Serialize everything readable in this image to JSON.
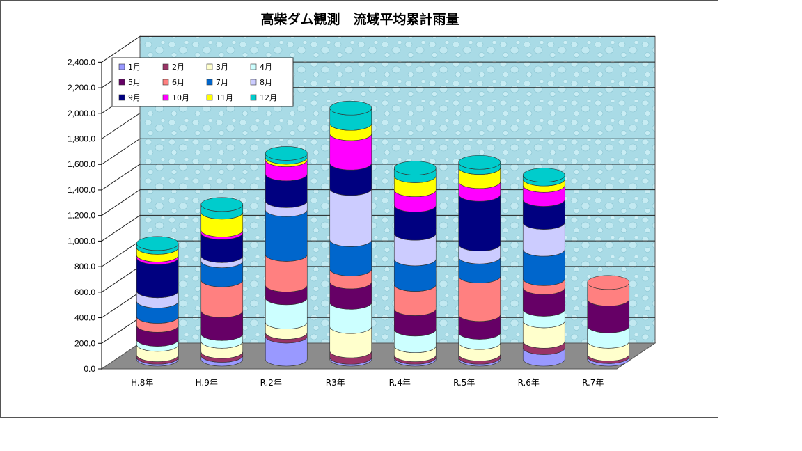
{
  "chart_data": {
    "type": "bar",
    "stacked": true,
    "three_d": true,
    "title": "高柴ダム観測　流域平均累計雨量",
    "categories": [
      "H.8年",
      "H.9年",
      "R.2年",
      "R3年",
      "R.4年",
      "R.5年",
      "R.6年",
      "R.7年"
    ],
    "ylim": [
      0,
      2400
    ],
    "yticks": [
      "0.0",
      "200.0",
      "400.0",
      "600.0",
      "800.0",
      "1,000.0",
      "1,200.0",
      "1,400.0",
      "1,600.0",
      "1,800.0",
      "2,000.0",
      "2,200.0",
      "2,400.0"
    ],
    "grid": true,
    "legend_position": "top-left",
    "series": [
      {
        "name": "1月",
        "color": "#9999ff",
        "values": [
          15,
          30,
          180,
          15,
          15,
          15,
          90,
          20
        ]
      },
      {
        "name": "2月",
        "color": "#993366",
        "values": [
          20,
          30,
          30,
          50,
          20,
          25,
          50,
          20
        ]
      },
      {
        "name": "3月",
        "color": "#ffffcc",
        "values": [
          80,
          80,
          80,
          190,
          70,
          90,
          160,
          100
        ]
      },
      {
        "name": "4月",
        "color": "#ccffff",
        "values": [
          40,
          60,
          190,
          190,
          130,
          80,
          90,
          120
        ]
      },
      {
        "name": "5月",
        "color": "#660066",
        "values": [
          110,
          180,
          100,
          160,
          160,
          140,
          170,
          210
        ]
      },
      {
        "name": "6月",
        "color": "#ff8080",
        "values": [
          70,
          240,
          240,
          100,
          190,
          300,
          70,
          130
        ]
      },
      {
        "name": "7月",
        "color": "#0066cc",
        "values": [
          120,
          150,
          350,
          230,
          200,
          150,
          230,
          0
        ]
      },
      {
        "name": "8月",
        "color": "#ccccff",
        "values": [
          80,
          40,
          70,
          400,
          200,
          100,
          210,
          0
        ]
      },
      {
        "name": "9月",
        "color": "#000080",
        "values": [
          260,
          180,
          210,
          200,
          220,
          390,
          180,
          0
        ]
      },
      {
        "name": "10月",
        "color": "#ff00ff",
        "values": [
          20,
          20,
          110,
          230,
          120,
          100,
          110,
          0
        ]
      },
      {
        "name": "11月",
        "color": "#ffff00",
        "values": [
          60,
          140,
          20,
          80,
          110,
          110,
          50,
          0
        ]
      },
      {
        "name": "12月",
        "color": "#00cccc",
        "values": [
          30,
          60,
          30,
          120,
          60,
          40,
          30,
          0
        ]
      }
    ]
  }
}
